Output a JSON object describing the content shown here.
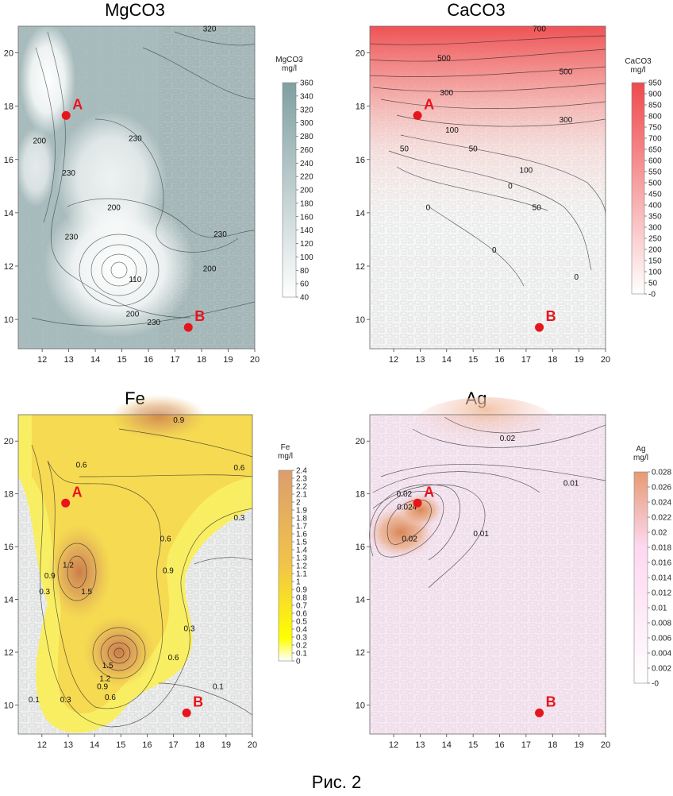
{
  "figure_caption": "Рис. 2",
  "chart_data": [
    {
      "type": "heatmap",
      "title": "MgCO3",
      "colorbar": {
        "label_line1": "MgCO3",
        "label_line2": "mg/l",
        "ticks": [
          40,
          60,
          80,
          100,
          120,
          140,
          160,
          180,
          200,
          220,
          240,
          260,
          280,
          300,
          320,
          340,
          360
        ],
        "colors": [
          "#ffffff",
          "#7f9fa1"
        ]
      },
      "x_ticks": [
        12,
        13,
        14,
        15,
        16,
        17,
        18,
        19,
        20
      ],
      "y_ticks": [
        10,
        12,
        14,
        16,
        18,
        20
      ],
      "xlim": [
        11.1,
        20.0
      ],
      "ylim": [
        8.9,
        21.0
      ],
      "contour_labels": [
        {
          "text": "320",
          "x": 18.3,
          "y": 20.8
        },
        {
          "text": "200",
          "x": 11.9,
          "y": 16.6
        },
        {
          "text": "230",
          "x": 13.0,
          "y": 15.4
        },
        {
          "text": "230",
          "x": 15.5,
          "y": 16.7
        },
        {
          "text": "200",
          "x": 14.7,
          "y": 14.1
        },
        {
          "text": "230",
          "x": 13.1,
          "y": 13.0
        },
        {
          "text": "230",
          "x": 18.7,
          "y": 13.1
        },
        {
          "text": "200",
          "x": 18.3,
          "y": 11.8
        },
        {
          "text": "110",
          "x": 15.5,
          "y": 11.4
        },
        {
          "text": "200",
          "x": 15.4,
          "y": 10.1
        },
        {
          "text": "230",
          "x": 16.2,
          "y": 9.8
        }
      ],
      "points": [
        {
          "name": "A",
          "x": 12.9,
          "y": 17.65
        },
        {
          "name": "B",
          "x": 17.5,
          "y": 9.7
        }
      ]
    },
    {
      "type": "heatmap",
      "title": "CaCO3",
      "colorbar": {
        "label_line1": "CaCO3",
        "label_line2": "mg/l",
        "ticks": [
          "-0",
          50,
          100,
          150,
          200,
          250,
          300,
          350,
          400,
          450,
          500,
          550,
          600,
          650,
          700,
          750,
          800,
          850,
          900,
          950
        ],
        "colors": [
          "#ffffff",
          "#ef4a4d"
        ]
      },
      "x_ticks": [
        12,
        13,
        14,
        15,
        16,
        17,
        18,
        19,
        20
      ],
      "y_ticks": [
        10,
        12,
        14,
        16,
        18,
        20
      ],
      "xlim": [
        11.1,
        20.0
      ],
      "ylim": [
        8.9,
        21.0
      ],
      "contour_labels": [
        {
          "text": "700",
          "x": 17.5,
          "y": 20.8
        },
        {
          "text": "500",
          "x": 13.9,
          "y": 19.7
        },
        {
          "text": "500",
          "x": 18.5,
          "y": 19.2
        },
        {
          "text": "300",
          "x": 14.0,
          "y": 18.4
        },
        {
          "text": "300",
          "x": 18.5,
          "y": 17.4
        },
        {
          "text": "100",
          "x": 14.2,
          "y": 17.0
        },
        {
          "text": "50",
          "x": 12.4,
          "y": 16.3
        },
        {
          "text": "50",
          "x": 15.0,
          "y": 16.3
        },
        {
          "text": "100",
          "x": 17.0,
          "y": 15.5
        },
        {
          "text": "0",
          "x": 16.4,
          "y": 14.9
        },
        {
          "text": "50",
          "x": 17.4,
          "y": 14.1
        },
        {
          "text": "0",
          "x": 13.3,
          "y": 14.1
        },
        {
          "text": "0",
          "x": 15.8,
          "y": 12.5
        },
        {
          "text": "0",
          "x": 18.9,
          "y": 11.5
        }
      ],
      "points": [
        {
          "name": "A",
          "x": 12.9,
          "y": 17.65
        },
        {
          "name": "B",
          "x": 17.5,
          "y": 9.7
        }
      ]
    },
    {
      "type": "heatmap",
      "title": "Fe",
      "colorbar": {
        "label_line1": "Fe",
        "label_line2": "mg/l",
        "ticks": [
          0,
          0.1,
          0.2,
          0.3,
          0.4,
          0.5,
          0.6,
          0.7,
          0.8,
          0.9,
          1,
          1.1,
          1.2,
          1.3,
          1.4,
          1.5,
          1.6,
          1.7,
          1.8,
          1.9,
          2,
          2.1,
          2.2,
          2.3,
          2.4
        ],
        "colors": [
          "#ffffff",
          "#ffff00",
          "#dc9d6e"
        ]
      },
      "x_ticks": [
        12,
        13,
        14,
        15,
        16,
        17,
        18,
        19,
        20
      ],
      "y_ticks": [
        10,
        12,
        14,
        16,
        18,
        20
      ],
      "xlim": [
        11.1,
        20.0
      ],
      "ylim": [
        8.9,
        21.0
      ],
      "contour_labels": [
        {
          "text": "0.9",
          "x": 17.2,
          "y": 20.7
        },
        {
          "text": "0.6",
          "x": 13.5,
          "y": 19.0
        },
        {
          "text": "0.6",
          "x": 19.5,
          "y": 18.9
        },
        {
          "text": "0.3",
          "x": 19.5,
          "y": 17.0
        },
        {
          "text": "0.6",
          "x": 16.7,
          "y": 16.2
        },
        {
          "text": "1.2",
          "x": 13.0,
          "y": 15.2
        },
        {
          "text": "0.9",
          "x": 12.3,
          "y": 14.8
        },
        {
          "text": "0.3",
          "x": 12.1,
          "y": 14.2
        },
        {
          "text": "0.9",
          "x": 16.8,
          "y": 15.0
        },
        {
          "text": "1.5",
          "x": 13.7,
          "y": 14.2
        },
        {
          "text": "0.3",
          "x": 17.6,
          "y": 12.8
        },
        {
          "text": "0.6",
          "x": 17.0,
          "y": 11.7
        },
        {
          "text": "1.5",
          "x": 14.5,
          "y": 11.4
        },
        {
          "text": "1.2",
          "x": 14.4,
          "y": 10.9
        },
        {
          "text": "0.9",
          "x": 14.3,
          "y": 10.6
        },
        {
          "text": "0.6",
          "x": 14.6,
          "y": 10.2
        },
        {
          "text": "0.1",
          "x": 18.7,
          "y": 10.6
        },
        {
          "text": "0.1",
          "x": 11.7,
          "y": 10.1
        },
        {
          "text": "0.3",
          "x": 12.9,
          "y": 10.1
        }
      ],
      "points": [
        {
          "name": "A",
          "x": 12.9,
          "y": 17.65
        },
        {
          "name": "B",
          "x": 17.5,
          "y": 9.7
        }
      ]
    },
    {
      "type": "heatmap",
      "title": "Ag",
      "colorbar": {
        "label_line1": "Ag",
        "label_line2": "mg/l",
        "ticks": [
          "-0",
          0.002,
          0.004,
          0.006,
          0.008,
          0.01,
          0.012,
          0.014,
          0.016,
          0.018,
          0.02,
          0.022,
          0.024,
          0.026,
          0.028
        ],
        "colors": [
          "#ffffff",
          "#fdd7f0",
          "#e79a73"
        ]
      },
      "x_ticks": [
        12,
        13,
        14,
        15,
        16,
        17,
        18,
        19,
        20
      ],
      "y_ticks": [
        10,
        12,
        14,
        16,
        18,
        20
      ],
      "xlim": [
        11.1,
        20.0
      ],
      "ylim": [
        8.9,
        21.0
      ],
      "contour_labels": [
        {
          "text": "0.02",
          "x": 16.3,
          "y": 20.0
        },
        {
          "text": "0.01",
          "x": 18.7,
          "y": 18.3
        },
        {
          "text": "0.02",
          "x": 12.4,
          "y": 17.9
        },
        {
          "text": "0.024",
          "x": 12.5,
          "y": 17.4
        },
        {
          "text": "0.01",
          "x": 15.3,
          "y": 16.4
        },
        {
          "text": "0.02",
          "x": 12.6,
          "y": 16.2
        }
      ],
      "points": [
        {
          "name": "A",
          "x": 12.9,
          "y": 17.65
        },
        {
          "name": "B",
          "x": 17.5,
          "y": 9.7
        }
      ]
    }
  ]
}
